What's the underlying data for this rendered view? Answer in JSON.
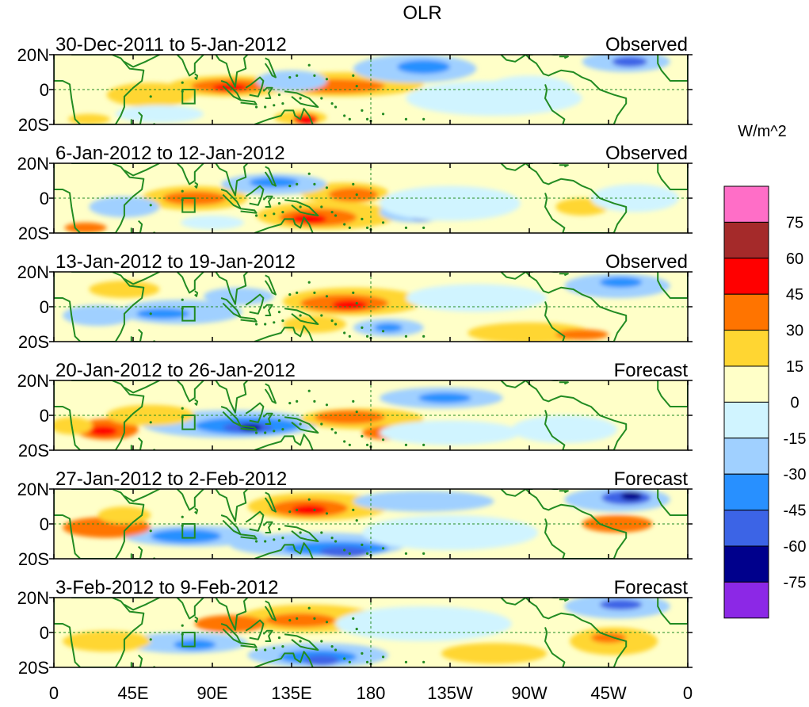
{
  "title": "OLR",
  "units_label": "W/m^2",
  "lat_labels": [
    "20N",
    "0",
    "20S"
  ],
  "lon_labels": [
    "0",
    "45E",
    "90E",
    "135E",
    "180",
    "135W",
    "90W",
    "45W",
    "0"
  ],
  "panels": [
    {
      "period": "30-Dec-2011 to 5-Jan-2012",
      "kind": "Observed"
    },
    {
      "period": "6-Jan-2012 to 12-Jan-2012",
      "kind": "Observed"
    },
    {
      "period": "13-Jan-2012 to 19-Jan-2012",
      "kind": "Observed"
    },
    {
      "period": "20-Jan-2012 to 26-Jan-2012",
      "kind": "Forecast"
    },
    {
      "period": "27-Jan-2012 to 2-Feb-2012",
      "kind": "Forecast"
    },
    {
      "period": "3-Feb-2012 to 9-Feb-2012",
      "kind": "Forecast"
    }
  ],
  "colorbar": {
    "tick_labels": [
      "75",
      "60",
      "45",
      "30",
      "15",
      "0",
      "-15",
      "-30",
      "-45",
      "-60",
      "-75"
    ],
    "colors_top_to_bottom": [
      "#ff6ec7",
      "#a52a2a",
      "#ff0000",
      "#ff7400",
      "#ffd632",
      "#ffffc8",
      "#d0f4ff",
      "#a0d0ff",
      "#2890ff",
      "#3c64e6",
      "#00008c",
      "#8c28e6"
    ]
  },
  "colors": {
    "coast": "#228b22",
    "zero_line": "#228b22"
  }
}
